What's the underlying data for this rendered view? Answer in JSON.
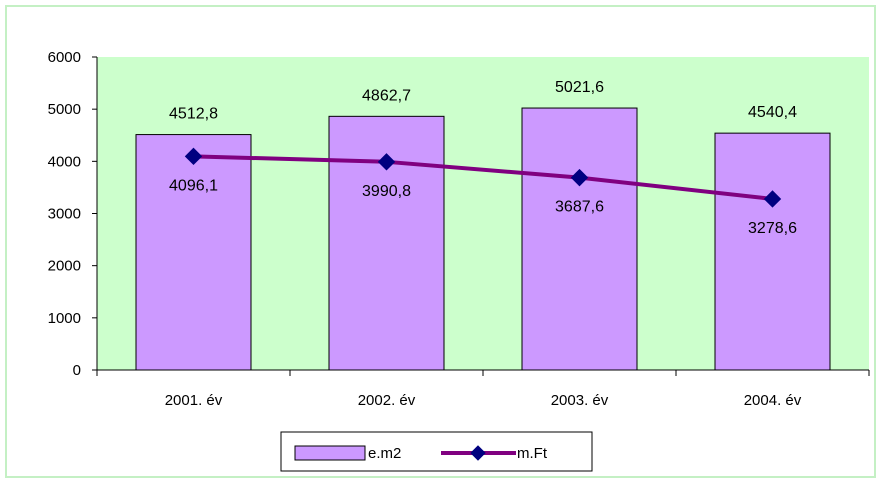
{
  "chart_data": {
    "type": "bar+line",
    "categories": [
      "2001. év",
      "2002. év",
      "2003. év",
      "2004. év"
    ],
    "series": [
      {
        "name": "e.m2",
        "type": "bar",
        "values": [
          4512.8,
          4862.7,
          5021.6,
          4540.4
        ],
        "labels": [
          "4512,8",
          "4862,7",
          "5021,6",
          "4540,4"
        ]
      },
      {
        "name": "m.Ft",
        "type": "line",
        "values": [
          4096.1,
          3990.8,
          3687.6,
          3278.6
        ],
        "labels": [
          "4096,1",
          "3990,8",
          "3687,6",
          "3278,6"
        ]
      }
    ],
    "yticks": [
      "0",
      "1000",
      "2000",
      "3000",
      "4000",
      "5000",
      "6000"
    ],
    "ylim": [
      0,
      6000
    ],
    "legend": "bottom",
    "colors": {
      "plot_bg": "#ccffcc",
      "bar": "#cc99ff",
      "line": "#800080",
      "marker": "#000080",
      "frame": "#c4f0c4"
    }
  }
}
